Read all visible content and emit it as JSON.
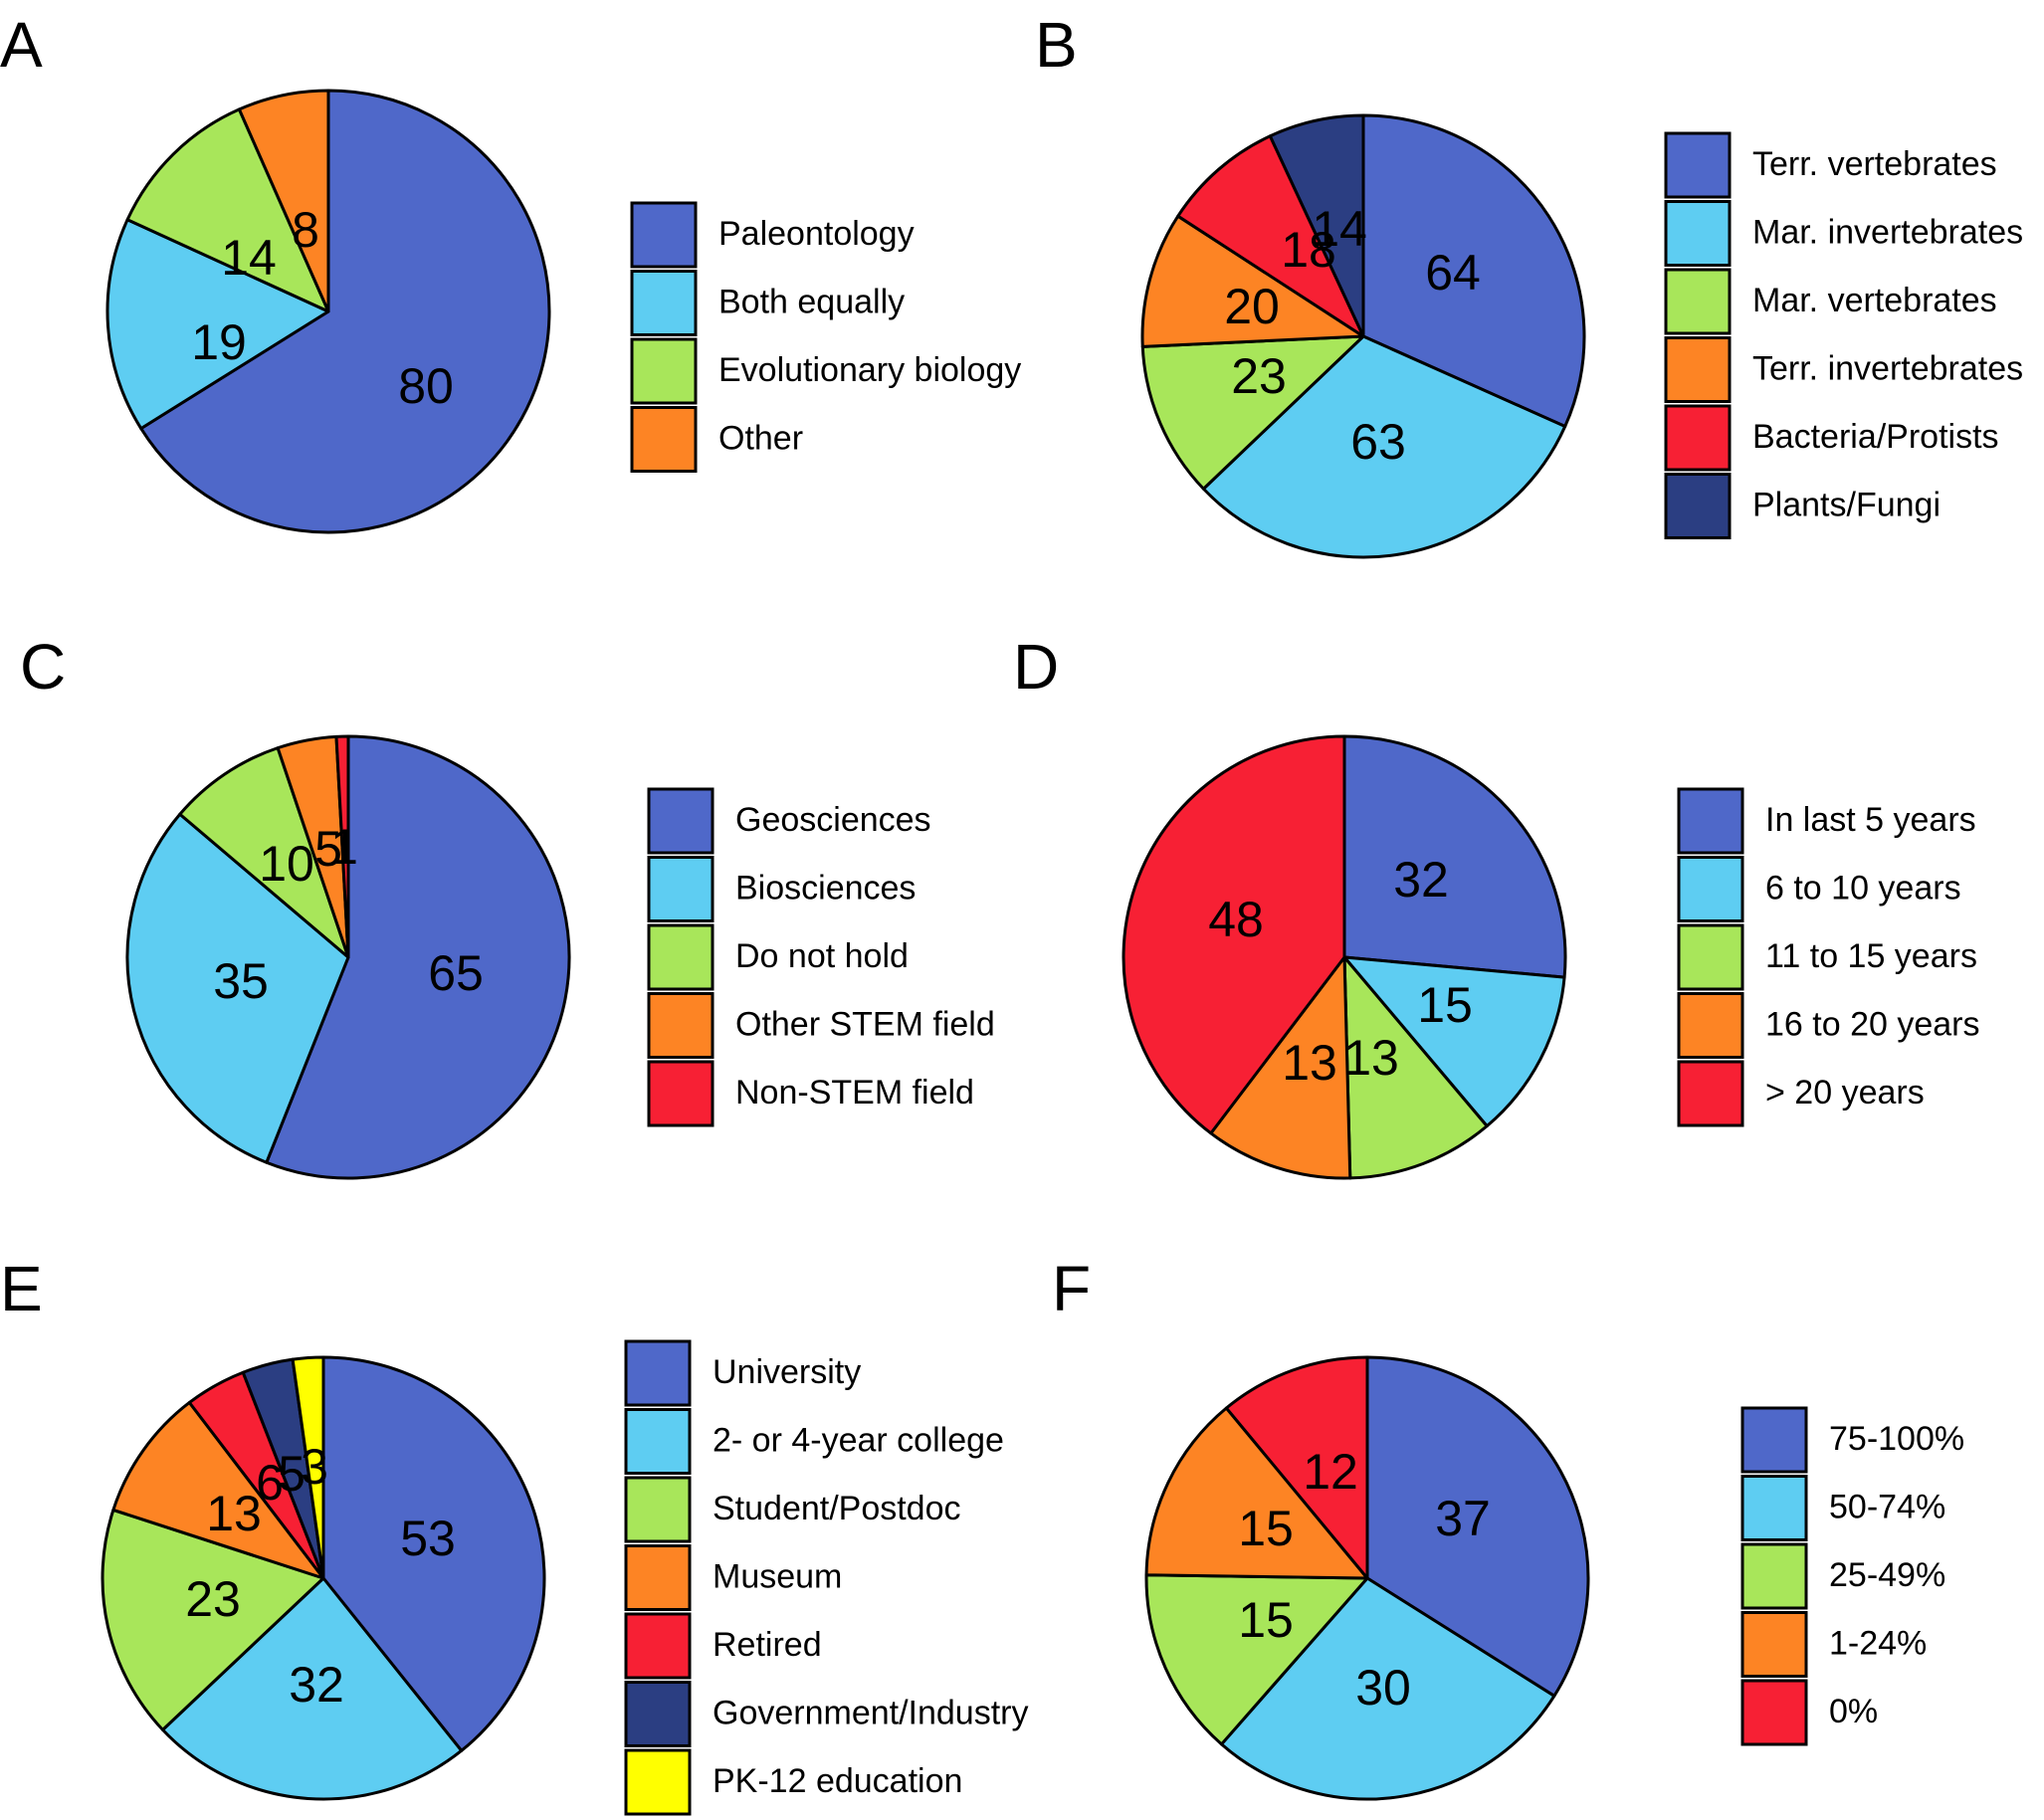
{
  "colors": {
    "blue": "#4f68c9",
    "cyan": "#5ecdf2",
    "green": "#a8e65a",
    "orange": "#fd8424",
    "red": "#f72034",
    "navy": "#2b3e82",
    "yellow": "#ffff00"
  },
  "chart_data": [
    {
      "panel": "A",
      "type": "pie",
      "start_angle_deg": 0,
      "slices": [
        {
          "label": "Paleontology",
          "value": 80,
          "display": "80",
          "color": "blue"
        },
        {
          "label": "Both equally",
          "value": 19,
          "display": "19",
          "color": "cyan"
        },
        {
          "label": "Evolutionary biology",
          "value": 14,
          "display": "14",
          "color": "green"
        },
        {
          "label": "Other",
          "value": 8,
          "display": "8",
          "color": "orange"
        }
      ]
    },
    {
      "panel": "B",
      "type": "pie",
      "start_angle_deg": 0,
      "slices": [
        {
          "label": "Terr. vertebrates",
          "value": 64,
          "display": "64",
          "color": "blue"
        },
        {
          "label": "Mar. invertebrates",
          "value": 63,
          "display": "63",
          "color": "cyan"
        },
        {
          "label": "Mar. vertebrates",
          "value": 23,
          "display": "23",
          "color": "green"
        },
        {
          "label": "Terr. invertebrates",
          "value": 20,
          "display": "20",
          "color": "orange"
        },
        {
          "label": "Bacteria/Protists",
          "value": 18,
          "display": "18",
          "color": "red"
        },
        {
          "label": "Plants/Fungi",
          "value": 14,
          "display": "14",
          "color": "navy"
        }
      ]
    },
    {
      "panel": "C",
      "type": "pie",
      "start_angle_deg": 0,
      "slices": [
        {
          "label": "Geosciences",
          "value": 65,
          "display": "65",
          "color": "blue"
        },
        {
          "label": "Biosciences",
          "value": 35,
          "display": "35",
          "color": "cyan"
        },
        {
          "label": "Do not hold",
          "value": 10,
          "display": "10",
          "color": "green"
        },
        {
          "label": "Other STEM field",
          "value": 5,
          "display": "5",
          "color": "orange"
        },
        {
          "label": "Non-STEM field",
          "value": 1,
          "display": "1",
          "color": "red"
        }
      ]
    },
    {
      "panel": "D",
      "type": "pie",
      "start_angle_deg": 0,
      "slices": [
        {
          "label": "In last 5 years",
          "value": 32,
          "display": "32",
          "color": "blue"
        },
        {
          "label": "6 to 10 years",
          "value": 15,
          "display": "15",
          "color": "cyan"
        },
        {
          "label": "11 to 15 years",
          "value": 13,
          "display": "13",
          "color": "green"
        },
        {
          "label": "16 to 20 years",
          "value": 13,
          "display": "13",
          "color": "orange"
        },
        {
          "label": "> 20 years",
          "value": 48,
          "display": "48",
          "color": "red"
        }
      ]
    },
    {
      "panel": "E",
      "type": "pie",
      "start_angle_deg": 0,
      "slices": [
        {
          "label": "University",
          "value": 53,
          "display": "53",
          "color": "blue"
        },
        {
          "label": "2- or 4-year college",
          "value": 32,
          "display": "32",
          "color": "cyan"
        },
        {
          "label": "Student/Postdoc",
          "value": 23,
          "display": "23",
          "color": "green"
        },
        {
          "label": "Museum",
          "value": 13,
          "display": "13",
          "color": "orange"
        },
        {
          "label": "Retired",
          "value": 6,
          "display": "6",
          "color": "red"
        },
        {
          "label": "Government/Industry",
          "value": 5,
          "display": "5",
          "color": "navy"
        },
        {
          "label": "PK-12 education",
          "value": 3,
          "display": "3",
          "color": "yellow"
        }
      ]
    },
    {
      "panel": "F",
      "type": "pie",
      "start_angle_deg": 0,
      "slices": [
        {
          "label": "75-100%",
          "value": 37,
          "display": "37",
          "color": "blue"
        },
        {
          "label": "50-74%",
          "value": 30,
          "display": "30",
          "color": "cyan"
        },
        {
          "label": "25-49%",
          "value": 15,
          "display": "15",
          "color": "green"
        },
        {
          "label": "1-24%",
          "value": 15,
          "display": "15",
          "color": "orange"
        },
        {
          "label": "0%",
          "value": 12,
          "display": "12",
          "color": "red"
        }
      ]
    }
  ]
}
